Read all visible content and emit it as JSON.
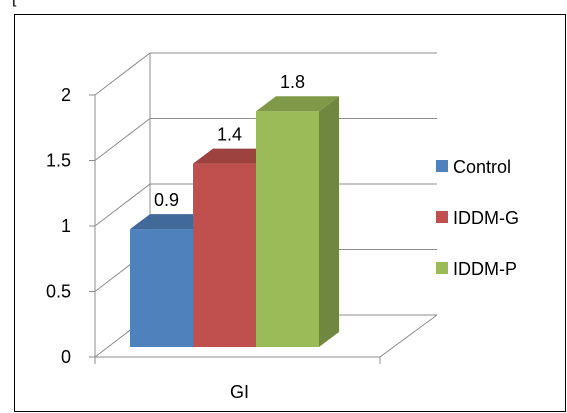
{
  "fragment_text": "[",
  "chart_data": {
    "type": "bar",
    "categories": [
      "GI"
    ],
    "series": [
      {
        "name": "Control",
        "values": [
          0.9
        ],
        "color": "#4f81bd",
        "label": "0.9"
      },
      {
        "name": "IDDM-G",
        "values": [
          1.4
        ],
        "color": "#c0504d",
        "label": "1.4"
      },
      {
        "name": "IDDM-P",
        "values": [
          1.8
        ],
        "color": "#9bbb59",
        "label": "1.8"
      }
    ],
    "title": "",
    "xlabel": "",
    "ylabel": "",
    "ylim": [
      0,
      2
    ],
    "yticks": [
      "0",
      "0.5",
      "1",
      "1.5",
      "2"
    ],
    "grid": true,
    "three_d": true,
    "legend_position": "right"
  }
}
